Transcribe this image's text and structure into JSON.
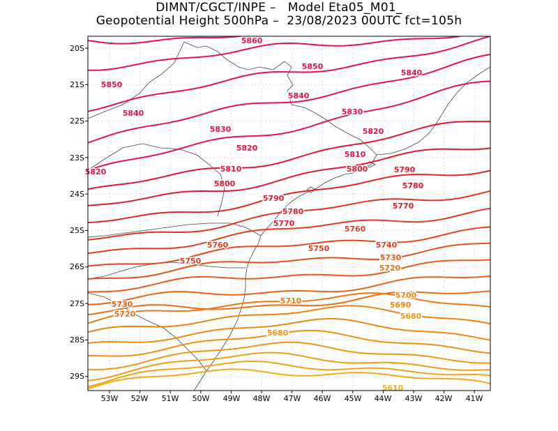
{
  "header": {
    "line1": "DIMNT/CGCT/INPE –   Model Eta05_M01_",
    "line2": "Geopotential Height 500hPa –  23/08/2023 00UTC fct=105h"
  },
  "axes": {
    "lat_labels": [
      "20S",
      "21S",
      "22S",
      "23S",
      "24S",
      "25S",
      "26S",
      "27S",
      "28S",
      "29S"
    ],
    "lon_labels": [
      "53W",
      "52W",
      "51W",
      "50W",
      "49W",
      "48W",
      "47W",
      "46W",
      "45W",
      "44W",
      "43W",
      "42W",
      "41W"
    ]
  },
  "contour_labels": [
    {
      "text": "5860",
      "color": "#e8124a"
    },
    {
      "text": "5850",
      "color": "#e8124a"
    },
    {
      "text": "5850",
      "color": "#e8124a"
    },
    {
      "text": "5840",
      "color": "#e8124a"
    },
    {
      "text": "5840",
      "color": "#e8124a"
    },
    {
      "text": "5840",
      "color": "#e8124a"
    },
    {
      "text": "5830",
      "color": "#e8124a"
    },
    {
      "text": "5830",
      "color": "#e8124a"
    },
    {
      "text": "5820",
      "color": "#e8124a"
    },
    {
      "text": "5820",
      "color": "#e8124a"
    },
    {
      "text": "5820",
      "color": "#e8124a"
    },
    {
      "text": "5810",
      "color": "#e8124a"
    },
    {
      "text": "5810",
      "color": "#e8124a"
    },
    {
      "text": "5800",
      "color": "#e11b2f"
    },
    {
      "text": "5800",
      "color": "#e11b2f"
    },
    {
      "text": "5790",
      "color": "#e11b2f"
    },
    {
      "text": "5790",
      "color": "#e11b2f"
    },
    {
      "text": "5780",
      "color": "#e11b2f"
    },
    {
      "text": "5780",
      "color": "#e11b2f"
    },
    {
      "text": "5770",
      "color": "#e11b2f"
    },
    {
      "text": "5770",
      "color": "#e11b2f"
    },
    {
      "text": "5760",
      "color": "#e43d1d"
    },
    {
      "text": "5760",
      "color": "#e43d1d"
    },
    {
      "text": "5750",
      "color": "#e43d1d"
    },
    {
      "text": "5750",
      "color": "#e43d1d"
    },
    {
      "text": "5740",
      "color": "#e43d1d"
    },
    {
      "text": "5730",
      "color": "#e85b16"
    },
    {
      "text": "5730",
      "color": "#e85b16"
    },
    {
      "text": "5720",
      "color": "#ec6d12"
    },
    {
      "text": "5720",
      "color": "#ec6d12"
    },
    {
      "text": "5710",
      "color": "#ee7812"
    },
    {
      "text": "5700",
      "color": "#f08713"
    },
    {
      "text": "5690",
      "color": "#f08713"
    },
    {
      "text": "5680",
      "color": "#f29513"
    },
    {
      "text": "5680",
      "color": "#f29513"
    },
    {
      "text": "5610",
      "color": "#f5b211"
    }
  ]
}
